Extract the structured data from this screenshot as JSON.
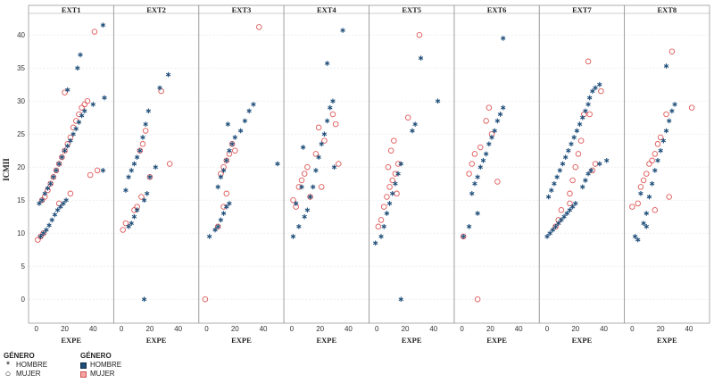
{
  "chart_data": {
    "type": "scatter",
    "title": "",
    "xlabel": "EXPE",
    "ylabel": "ICMII",
    "xlim": [
      -3,
      52
    ],
    "ylim": [
      -2,
      43
    ],
    "xticks": [
      0,
      20,
      40
    ],
    "yticks": [
      0,
      5,
      10,
      15,
      20,
      25,
      30,
      35,
      40
    ],
    "panels": [
      "EXT1",
      "EXT2",
      "EXT3",
      "EXT4",
      "EXT5",
      "EXT6",
      "EXT7",
      "EXT8"
    ],
    "colors": {
      "HOMBRE": "#1f4e79",
      "MUJER": "#e05a5a",
      "grid": "#e3e3e3",
      "panel_border": "#9a9a9a"
    },
    "series_by_panel": [
      {
        "HOMBRE": [
          [
            2,
            14.5
          ],
          [
            4,
            15
          ],
          [
            6,
            16
          ],
          [
            8,
            16.8
          ],
          [
            10,
            17.5
          ],
          [
            12,
            18.5
          ],
          [
            14,
            19.5
          ],
          [
            16,
            20.5
          ],
          [
            18,
            21.5
          ],
          [
            20,
            22.5
          ],
          [
            22,
            23.2
          ],
          [
            24,
            24
          ],
          [
            26,
            25
          ],
          [
            28,
            25.8
          ],
          [
            30,
            26.8
          ],
          [
            32,
            27.8
          ],
          [
            34,
            28.5
          ],
          [
            3,
            9.5
          ],
          [
            5,
            10
          ],
          [
            7,
            10.5
          ],
          [
            9,
            11.2
          ],
          [
            11,
            12
          ],
          [
            13,
            12.8
          ],
          [
            15,
            13.5
          ],
          [
            17,
            14
          ],
          [
            19,
            14.5
          ],
          [
            21,
            15
          ],
          [
            22,
            31.7
          ],
          [
            29,
            35
          ],
          [
            31,
            37
          ],
          [
            40,
            29.5
          ],
          [
            47,
            41.5
          ],
          [
            48,
            30.5
          ],
          [
            47,
            19.5
          ]
        ],
        "MUJER": [
          [
            1,
            9
          ],
          [
            3,
            9.5
          ],
          [
            5,
            10
          ],
          [
            4,
            15
          ],
          [
            6,
            15.5
          ],
          [
            8,
            16.5
          ],
          [
            10,
            17.5
          ],
          [
            12,
            18.5
          ],
          [
            14,
            19.5
          ],
          [
            16,
            20.5
          ],
          [
            18,
            21.5
          ],
          [
            20,
            22.5
          ],
          [
            22,
            23.5
          ],
          [
            24,
            24.5
          ],
          [
            26,
            26
          ],
          [
            28,
            27
          ],
          [
            30,
            28
          ],
          [
            32,
            29
          ],
          [
            34,
            29.5
          ],
          [
            36,
            30
          ],
          [
            20,
            31.3
          ],
          [
            24,
            16
          ],
          [
            38,
            18.8
          ],
          [
            41,
            40.5
          ],
          [
            43,
            19.5
          ],
          [
            16,
            14.5
          ]
        ]
      },
      {
        "HOMBRE": [
          [
            3,
            16.5
          ],
          [
            5,
            18.5
          ],
          [
            7,
            19.5
          ],
          [
            9,
            20.5
          ],
          [
            11,
            21.5
          ],
          [
            13,
            22.5
          ],
          [
            15,
            24.5
          ],
          [
            17,
            26.5
          ],
          [
            19,
            28.5
          ],
          [
            5,
            11
          ],
          [
            7,
            11.5
          ],
          [
            9,
            12.5
          ],
          [
            11,
            13.5
          ],
          [
            16,
            15
          ],
          [
            18,
            16
          ],
          [
            20,
            18.5
          ],
          [
            24,
            20
          ],
          [
            27,
            32
          ],
          [
            33,
            34
          ],
          [
            16,
            0
          ]
        ],
        "MUJER": [
          [
            1,
            10.5
          ],
          [
            3,
            11.5
          ],
          [
            9,
            13.5
          ],
          [
            11,
            14
          ],
          [
            13,
            22.5
          ],
          [
            15,
            23.5
          ],
          [
            17,
            25.5
          ],
          [
            20,
            18.5
          ],
          [
            28,
            31.5
          ],
          [
            34,
            20.5
          ],
          [
            14,
            15.5
          ]
        ]
      },
      {
        "HOMBRE": [
          [
            2,
            9.5
          ],
          [
            6,
            10.5
          ],
          [
            8,
            11
          ],
          [
            10,
            12
          ],
          [
            12,
            13
          ],
          [
            14,
            14
          ],
          [
            16,
            14.5
          ],
          [
            8,
            17
          ],
          [
            10,
            18.5
          ],
          [
            12,
            19.5
          ],
          [
            14,
            21
          ],
          [
            16,
            22.5
          ],
          [
            18,
            23.5
          ],
          [
            20,
            24.5
          ],
          [
            24,
            25.5
          ],
          [
            27,
            27
          ],
          [
            30,
            28.5
          ],
          [
            33,
            29.5
          ],
          [
            15,
            26.5
          ],
          [
            50,
            20.5
          ]
        ],
        "MUJER": [
          [
            -1,
            0
          ],
          [
            8,
            11
          ],
          [
            12,
            14
          ],
          [
            14,
            16
          ],
          [
            10,
            19
          ],
          [
            12,
            20
          ],
          [
            14,
            21
          ],
          [
            16,
            22
          ],
          [
            18,
            23.5
          ],
          [
            20,
            22.5
          ],
          [
            37,
            41.2
          ]
        ]
      },
      {
        "HOMBRE": [
          [
            1,
            9.5
          ],
          [
            3,
            14.5
          ],
          [
            5,
            11
          ],
          [
            7,
            17
          ],
          [
            9,
            12.5
          ],
          [
            11,
            13.5
          ],
          [
            13,
            15.5
          ],
          [
            15,
            17
          ],
          [
            17,
            19.5
          ],
          [
            19,
            21.5
          ],
          [
            21,
            23.5
          ],
          [
            23,
            25
          ],
          [
            25,
            27
          ],
          [
            27,
            29
          ],
          [
            29,
            30
          ],
          [
            25,
            35.7
          ],
          [
            36,
            40.7
          ],
          [
            30,
            20
          ],
          [
            8,
            23
          ]
        ],
        "MUJER": [
          [
            1,
            15
          ],
          [
            3,
            14
          ],
          [
            5,
            17
          ],
          [
            7,
            18
          ],
          [
            9,
            19
          ],
          [
            11,
            20
          ],
          [
            13,
            15.5
          ],
          [
            17,
            22
          ],
          [
            19,
            26
          ],
          [
            21,
            17
          ],
          [
            23,
            24
          ],
          [
            29,
            28
          ],
          [
            31,
            26.5
          ],
          [
            33,
            20.5
          ]
        ]
      },
      {
        "HOMBRE": [
          [
            -1,
            8.5
          ],
          [
            3,
            9.5
          ],
          [
            5,
            11
          ],
          [
            7,
            13
          ],
          [
            9,
            14.5
          ],
          [
            11,
            16
          ],
          [
            13,
            17.5
          ],
          [
            15,
            19
          ],
          [
            17,
            20.5
          ],
          [
            17,
            0
          ],
          [
            25,
            25.5
          ],
          [
            27,
            26.5
          ],
          [
            31,
            36.5
          ],
          [
            43,
            30
          ]
        ],
        "MUJER": [
          [
            1,
            11
          ],
          [
            3,
            12
          ],
          [
            5,
            14
          ],
          [
            7,
            15.5
          ],
          [
            9,
            17
          ],
          [
            11,
            18
          ],
          [
            13,
            19
          ],
          [
            15,
            20.5
          ],
          [
            10,
            22.5
          ],
          [
            12,
            24
          ],
          [
            14,
            16
          ],
          [
            22,
            27.5
          ],
          [
            30,
            40
          ],
          [
            8,
            20
          ]
        ]
      },
      {
        "HOMBRE": [
          [
            1,
            9.5
          ],
          [
            5,
            11
          ],
          [
            7,
            16
          ],
          [
            9,
            17.5
          ],
          [
            11,
            18.5
          ],
          [
            13,
            20
          ],
          [
            15,
            21
          ],
          [
            17,
            22
          ],
          [
            19,
            23.5
          ],
          [
            21,
            24.5
          ],
          [
            23,
            25.5
          ],
          [
            25,
            27
          ],
          [
            27,
            28
          ],
          [
            29,
            29
          ],
          [
            11,
            13
          ],
          [
            29,
            39.5
          ]
        ],
        "MUJER": [
          [
            1,
            9.5
          ],
          [
            5,
            19
          ],
          [
            7,
            20.5
          ],
          [
            9,
            22
          ],
          [
            13,
            23
          ],
          [
            17,
            27
          ],
          [
            19,
            29
          ],
          [
            21,
            25
          ],
          [
            25,
            17.8
          ],
          [
            11,
            0
          ]
        ]
      },
      {
        "HOMBRE": [
          [
            0,
            9.5
          ],
          [
            2,
            10
          ],
          [
            4,
            10.5
          ],
          [
            6,
            11
          ],
          [
            8,
            11.5
          ],
          [
            10,
            12
          ],
          [
            12,
            12.5
          ],
          [
            14,
            13
          ],
          [
            16,
            13.5
          ],
          [
            18,
            14
          ],
          [
            20,
            14.5
          ],
          [
            1,
            15.5
          ],
          [
            3,
            16.5
          ],
          [
            5,
            17.5
          ],
          [
            7,
            18.5
          ],
          [
            9,
            19.5
          ],
          [
            11,
            20.5
          ],
          [
            13,
            21.5
          ],
          [
            15,
            22.5
          ],
          [
            17,
            23.5
          ],
          [
            19,
            24.5
          ],
          [
            21,
            25.5
          ],
          [
            23,
            26.5
          ],
          [
            25,
            27.5
          ],
          [
            27,
            28.5
          ],
          [
            29,
            29.5
          ],
          [
            30,
            30.5
          ],
          [
            32,
            31.5
          ],
          [
            34,
            32
          ],
          [
            25,
            17
          ],
          [
            27,
            18
          ],
          [
            29,
            19
          ],
          [
            31,
            19.5
          ],
          [
            37,
            20.5
          ],
          [
            42,
            21
          ],
          [
            37,
            32.5
          ]
        ],
        "MUJER": [
          [
            6,
            11
          ],
          [
            8,
            12
          ],
          [
            10,
            13.5
          ],
          [
            16,
            16
          ],
          [
            18,
            18
          ],
          [
            20,
            20
          ],
          [
            22,
            22
          ],
          [
            24,
            24
          ],
          [
            26,
            28
          ],
          [
            30,
            28
          ],
          [
            32,
            19.5
          ],
          [
            34,
            20.5
          ],
          [
            38,
            31.5
          ],
          [
            29,
            36
          ],
          [
            16,
            14.5
          ]
        ]
      },
      {
        "HOMBRE": [
          [
            2,
            9.5
          ],
          [
            4,
            9
          ],
          [
            8,
            11.5
          ],
          [
            10,
            13
          ],
          [
            12,
            15.5
          ],
          [
            14,
            17.5
          ],
          [
            16,
            19.5
          ],
          [
            18,
            21
          ],
          [
            20,
            22.5
          ],
          [
            22,
            24
          ],
          [
            24,
            25.5
          ],
          [
            26,
            27
          ],
          [
            28,
            28.5
          ],
          [
            30,
            29.5
          ],
          [
            6,
            16
          ],
          [
            24,
            35.3
          ],
          [
            10,
            11
          ]
        ],
        "MUJER": [
          [
            0,
            14
          ],
          [
            4,
            14.5
          ],
          [
            6,
            17
          ],
          [
            8,
            18
          ],
          [
            10,
            19
          ],
          [
            12,
            20.5
          ],
          [
            14,
            21
          ],
          [
            16,
            22
          ],
          [
            18,
            23.5
          ],
          [
            20,
            24.5
          ],
          [
            24,
            28
          ],
          [
            28,
            37.5
          ],
          [
            16,
            13.5
          ],
          [
            26,
            15.5
          ],
          [
            42,
            29
          ]
        ]
      }
    ]
  },
  "legend": {
    "symbol_title": "GÉNERO",
    "symbol_items": [
      {
        "glyph": "*",
        "label": "HOMBRE"
      },
      {
        "glyph": "○",
        "label": "MUJER"
      }
    ],
    "color_title": "GÉNERO",
    "color_items": [
      {
        "label": "HOMBRE"
      },
      {
        "label": "MUJER"
      }
    ]
  }
}
